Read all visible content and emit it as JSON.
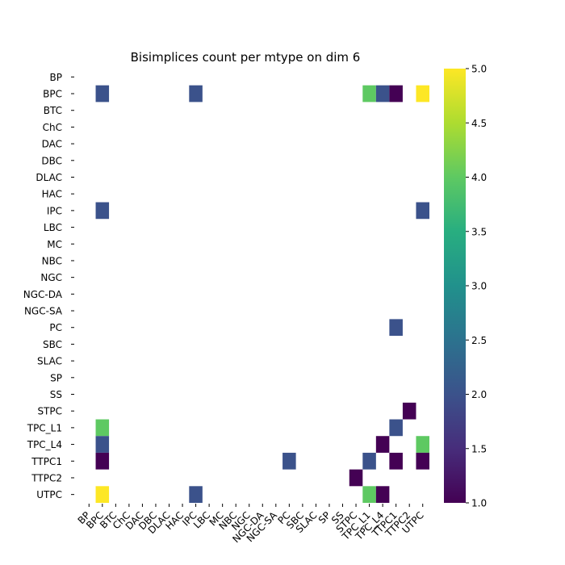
{
  "chart_data": {
    "type": "heatmap",
    "title": "Bisimplices count per mtype on dim 6",
    "xlabel": "",
    "ylabel": "",
    "rows": [
      "BP",
      "BPC",
      "BTC",
      "ChC",
      "DAC",
      "DBC",
      "DLAC",
      "HAC",
      "IPC",
      "LBC",
      "MC",
      "NBC",
      "NGC",
      "NGC-DA",
      "NGC-SA",
      "PC",
      "SBC",
      "SLAC",
      "SP",
      "SS",
      "STPC",
      "TPC_L1",
      "TPC_L4",
      "TTPC1",
      "TTPC2",
      "UTPC"
    ],
    "columns": [
      "BP",
      "BPC",
      "BTC",
      "ChC",
      "DAC",
      "DBC",
      "DLAC",
      "HAC",
      "IPC",
      "LBC",
      "MC",
      "NBC",
      "NGC",
      "NGC-DA",
      "NGC-SA",
      "PC",
      "SBC",
      "SLAC",
      "SP",
      "SS",
      "STPC",
      "TPC_L1",
      "TPC_L4",
      "TTPC1",
      "TTPC2",
      "UTPC"
    ],
    "cells": [
      {
        "row": "BPC",
        "col": "BPC",
        "value": 2
      },
      {
        "row": "BPC",
        "col": "IPC",
        "value": 2
      },
      {
        "row": "BPC",
        "col": "TPC_L1",
        "value": 4
      },
      {
        "row": "BPC",
        "col": "TPC_L4",
        "value": 2
      },
      {
        "row": "BPC",
        "col": "TTPC1",
        "value": 1
      },
      {
        "row": "BPC",
        "col": "UTPC",
        "value": 5
      },
      {
        "row": "IPC",
        "col": "BPC",
        "value": 2
      },
      {
        "row": "IPC",
        "col": "UTPC",
        "value": 2
      },
      {
        "row": "PC",
        "col": "TTPC1",
        "value": 2
      },
      {
        "row": "STPC",
        "col": "TTPC2",
        "value": 1
      },
      {
        "row": "TPC_L1",
        "col": "BPC",
        "value": 4
      },
      {
        "row": "TPC_L1",
        "col": "TTPC1",
        "value": 2
      },
      {
        "row": "TPC_L4",
        "col": "BPC",
        "value": 2
      },
      {
        "row": "TPC_L4",
        "col": "TPC_L4",
        "value": 1
      },
      {
        "row": "TPC_L4",
        "col": "UTPC",
        "value": 4
      },
      {
        "row": "TTPC1",
        "col": "BPC",
        "value": 1
      },
      {
        "row": "TTPC1",
        "col": "PC",
        "value": 2
      },
      {
        "row": "TTPC1",
        "col": "TPC_L1",
        "value": 2
      },
      {
        "row": "TTPC1",
        "col": "TTPC1",
        "value": 1
      },
      {
        "row": "TTPC1",
        "col": "UTPC",
        "value": 1
      },
      {
        "row": "TTPC2",
        "col": "STPC",
        "value": 1
      },
      {
        "row": "UTPC",
        "col": "BPC",
        "value": 5
      },
      {
        "row": "UTPC",
        "col": "IPC",
        "value": 2
      },
      {
        "row": "UTPC",
        "col": "TPC_L1",
        "value": 4
      },
      {
        "row": "UTPC",
        "col": "TPC_L4",
        "value": 1
      }
    ],
    "colorbar": {
      "min": 1.0,
      "max": 5.0,
      "colormap": "viridis",
      "ticks": [
        "1.0",
        "1.5",
        "2.0",
        "2.5",
        "3.0",
        "3.5",
        "4.0",
        "4.5",
        "5.0"
      ]
    },
    "grid": false
  }
}
